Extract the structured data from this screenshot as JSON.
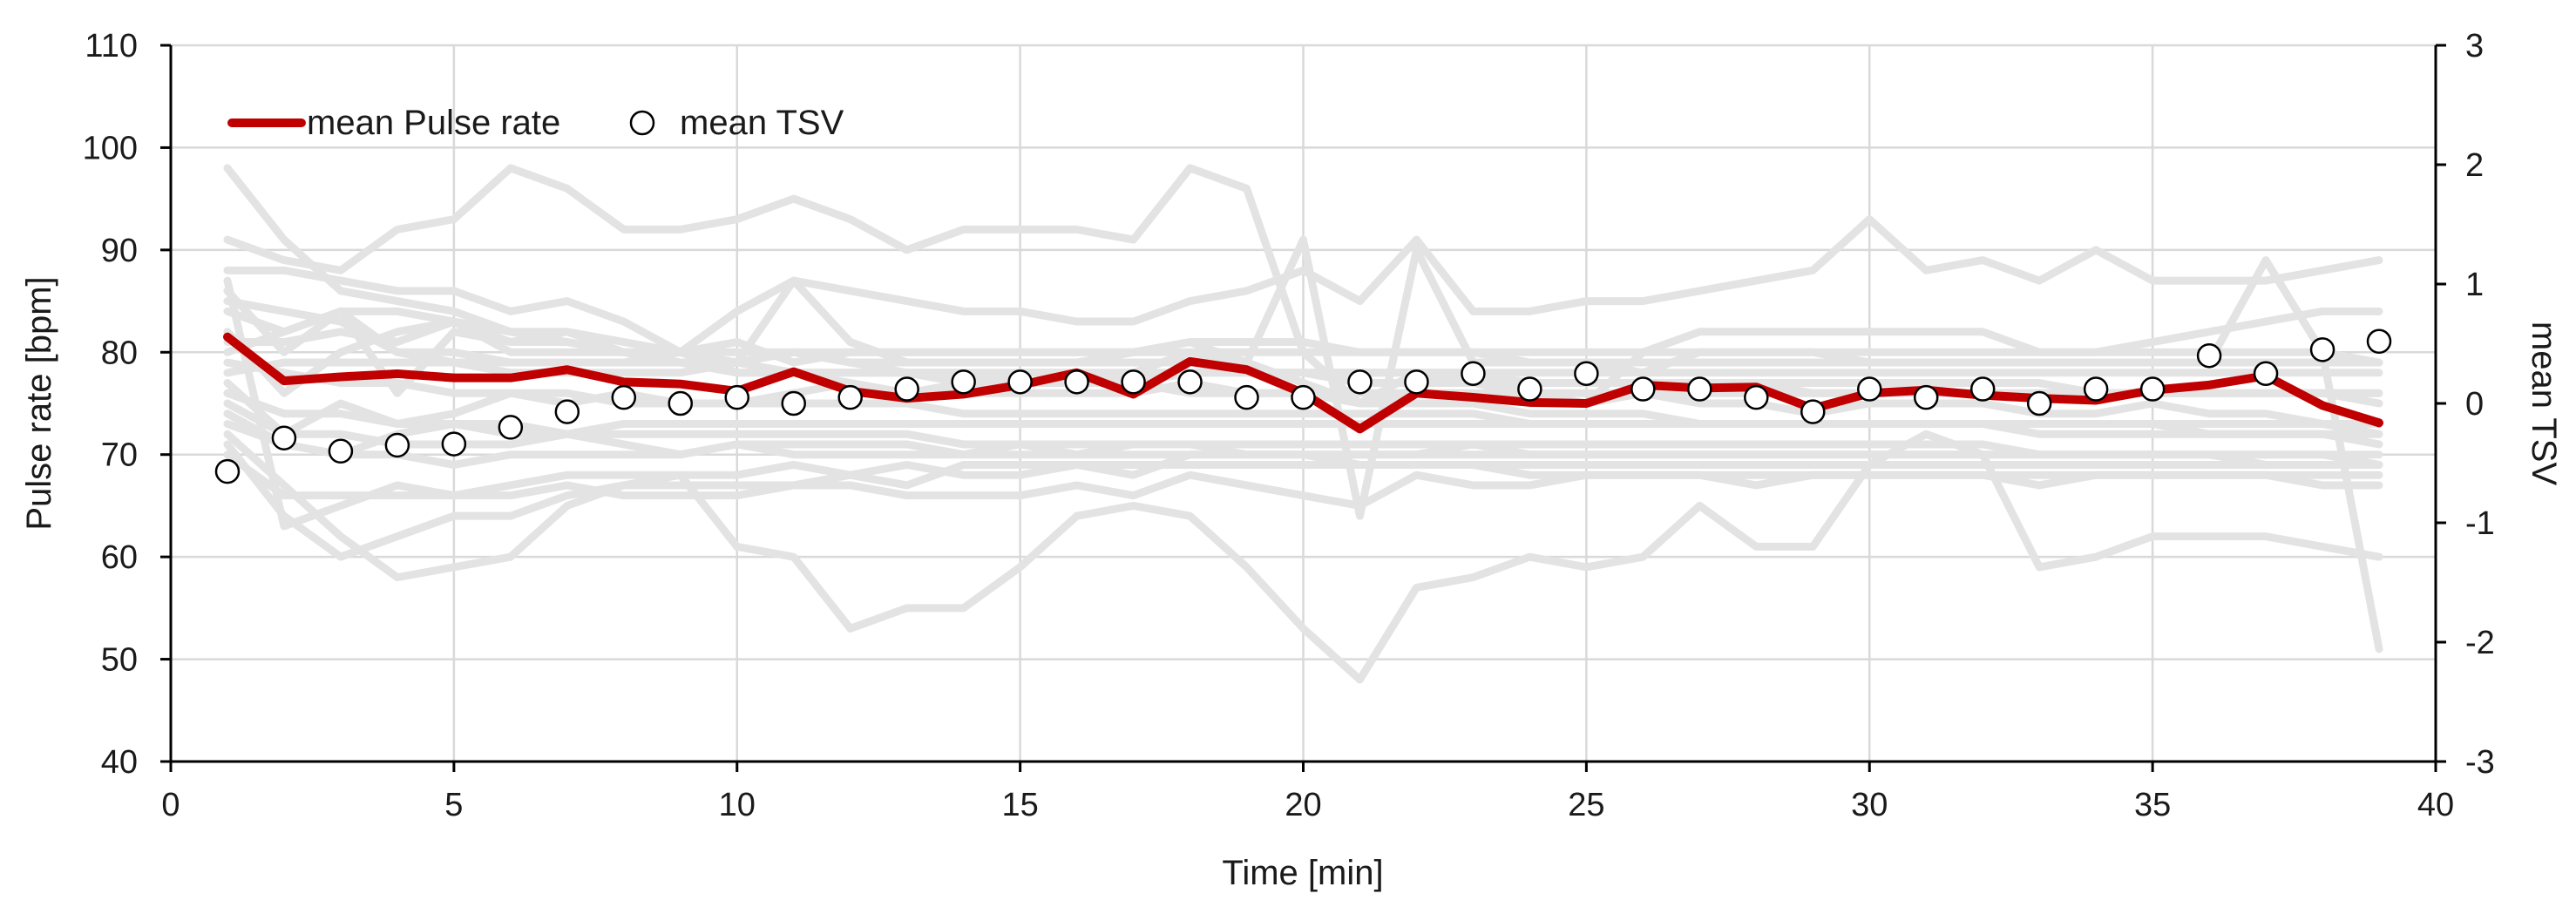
{
  "chart_data": {
    "type": "line",
    "title": "",
    "xlabel": "Time [min]",
    "ylabel": "Pulse rate [bpm]",
    "y2label": "mean TSV",
    "xlim": [
      0,
      40
    ],
    "ylim": [
      40,
      110
    ],
    "y2lim": [
      -3,
      3
    ],
    "xticks": [
      0,
      5,
      10,
      15,
      20,
      25,
      30,
      35,
      40
    ],
    "yticks": [
      40,
      50,
      60,
      70,
      80,
      90,
      100,
      110
    ],
    "y2ticks": [
      -3,
      -2,
      -1,
      0,
      1,
      2,
      3
    ],
    "grid": true,
    "legend_position": "top-left",
    "colors": {
      "mean_pulse": "#c00000",
      "individual": "#e3e3e3",
      "tsv_marker_fill": "#ffffff",
      "tsv_marker_stroke": "#000000",
      "grid": "#d9d9d9",
      "axis": "#000000"
    },
    "x": [
      1,
      2,
      3,
      4,
      5,
      6,
      7,
      8,
      9,
      10,
      11,
      12,
      13,
      14,
      15,
      16,
      17,
      18,
      19,
      20,
      21,
      22,
      23,
      24,
      25,
      26,
      27,
      28,
      29,
      30,
      31,
      32,
      33,
      34,
      35,
      36,
      37,
      38,
      39
    ],
    "series": [
      {
        "name": "mean Pulse rate",
        "axis": "left",
        "values": [
          81.5,
          77.2,
          77.6,
          77.9,
          77.5,
          77.5,
          78.3,
          77.1,
          76.9,
          76.2,
          78.1,
          76.2,
          75.5,
          75.9,
          76.8,
          78.0,
          75.9,
          79.1,
          78.3,
          76.0,
          72.5,
          76.0,
          75.6,
          75.1,
          75.0,
          76.8,
          76.5,
          76.6,
          74.5,
          76.0,
          76.3,
          75.8,
          75.5,
          75.3,
          76.3,
          76.8,
          77.7,
          74.8,
          73.1
        ]
      },
      {
        "name": "mean TSV",
        "axis": "right",
        "values": [
          -0.57,
          -0.29,
          -0.4,
          -0.35,
          -0.34,
          -0.2,
          -0.07,
          0.05,
          0.0,
          0.05,
          0.0,
          0.05,
          0.12,
          0.18,
          0.18,
          0.18,
          0.18,
          0.18,
          0.05,
          0.05,
          0.18,
          0.18,
          0.25,
          0.12,
          0.25,
          0.12,
          0.12,
          0.05,
          -0.07,
          0.12,
          0.05,
          0.12,
          0.0,
          0.12,
          0.12,
          0.4,
          0.25,
          0.45,
          0.52
        ]
      }
    ],
    "individual_series": [
      {
        "values": [
          98,
          91,
          86,
          85,
          84,
          82,
          81,
          80,
          80,
          79,
          80,
          79,
          78,
          78,
          77,
          77,
          78,
          80,
          79,
          77,
          75,
          76,
          76,
          75,
          75,
          76,
          75,
          75,
          74,
          75,
          75,
          75,
          74,
          74,
          75,
          74,
          74,
          73,
          72
        ]
      },
      {
        "values": [
          91,
          89,
          88,
          92,
          93,
          98,
          96,
          92,
          92,
          93,
          95,
          93,
          90,
          92,
          92,
          92,
          91,
          98,
          96,
          80,
          75,
          78,
          77,
          76,
          75,
          80,
          82,
          82,
          82,
          82,
          82,
          82,
          80,
          80,
          81,
          82,
          83,
          84,
          84
        ]
      },
      {
        "values": [
          88,
          88,
          87,
          86,
          86,
          84,
          85,
          83,
          80,
          84,
          87,
          86,
          85,
          84,
          84,
          83,
          83,
          85,
          86,
          88,
          85,
          91,
          84,
          84,
          85,
          85,
          86,
          87,
          88,
          93,
          88,
          89,
          87,
          90,
          87,
          87,
          87,
          88,
          89
        ]
      },
      {
        "values": [
          87,
          63,
          65,
          67,
          66,
          66,
          67,
          66,
          66,
          66,
          67,
          67,
          66,
          66,
          66,
          67,
          66,
          68,
          67,
          66,
          65,
          68,
          67,
          67,
          68,
          68,
          68,
          67,
          68,
          68,
          68,
          68,
          67,
          68,
          68,
          68,
          68,
          67,
          67
        ]
      },
      {
        "values": [
          85,
          84,
          83,
          80,
          80,
          79,
          79,
          79,
          80,
          81,
          79,
          80,
          80,
          80,
          80,
          80,
          80,
          81,
          81,
          81,
          80,
          80,
          80,
          80,
          80,
          80,
          80,
          80,
          80,
          80,
          80,
          80,
          80,
          80,
          80,
          80,
          80,
          80,
          79
        ]
      },
      {
        "values": [
          84,
          82,
          84,
          80,
          79,
          78,
          78,
          78,
          78,
          79,
          78,
          78,
          78,
          77,
          78,
          78,
          77,
          78,
          78,
          78,
          77,
          77,
          77,
          77,
          77,
          77,
          77,
          77,
          77,
          77,
          77,
          77,
          77,
          76,
          76,
          76,
          76,
          76,
          76
        ]
      },
      {
        "values": [
          82,
          76,
          80,
          82,
          83,
          82,
          82,
          80,
          80,
          78,
          78,
          77,
          76,
          76,
          76,
          76,
          76,
          77,
          76,
          76,
          75,
          75,
          75,
          74,
          74,
          74,
          73,
          73,
          73,
          73,
          73,
          73,
          73,
          73,
          73,
          72,
          72,
          72,
          71
        ]
      },
      {
        "values": [
          80,
          82,
          84,
          84,
          83,
          80,
          80,
          80,
          79,
          79,
          80,
          79,
          79,
          79,
          79,
          79,
          79,
          79,
          78,
          78,
          78,
          78,
          78,
          77,
          77,
          77,
          77,
          77,
          76,
          76,
          76,
          76,
          76,
          76,
          76,
          76,
          76,
          76,
          75
        ]
      },
      {
        "values": [
          79,
          78,
          77,
          77,
          76,
          76,
          76,
          75,
          75,
          75,
          75,
          75,
          75,
          74,
          74,
          74,
          74,
          74,
          74,
          74,
          74,
          74,
          74,
          73,
          73,
          73,
          73,
          73,
          73,
          73,
          73,
          73,
          72,
          72,
          72,
          72,
          72,
          72,
          72
        ]
      },
      {
        "values": [
          76,
          74,
          74,
          73,
          73,
          73,
          72,
          72,
          72,
          72,
          72,
          72,
          72,
          71,
          71,
          71,
          71,
          71,
          71,
          71,
          71,
          71,
          71,
          71,
          71,
          71,
          71,
          71,
          71,
          71,
          71,
          71,
          70,
          70,
          70,
          70,
          70,
          70,
          69
        ]
      },
      {
        "values": [
          75,
          72,
          72,
          71,
          71,
          71,
          72,
          71,
          70,
          71,
          71,
          71,
          71,
          70,
          71,
          70,
          71,
          71,
          70,
          70,
          70,
          70,
          71,
          70,
          70,
          70,
          70,
          70,
          70,
          70,
          70,
          70,
          70,
          70,
          70,
          70,
          69,
          69,
          69
        ]
      },
      {
        "values": [
          73,
          71,
          70,
          70,
          69,
          70,
          70,
          70,
          70,
          71,
          70,
          70,
          70,
          70,
          70,
          70,
          70,
          70,
          70,
          70,
          70,
          70,
          70,
          70,
          70,
          70,
          70,
          70,
          70,
          70,
          70,
          70,
          70,
          70,
          70,
          70,
          70,
          70,
          70
        ]
      },
      {
        "values": [
          72,
          67,
          62,
          58,
          59,
          60,
          65,
          67,
          67,
          67,
          67,
          68,
          67,
          69,
          69,
          69,
          68,
          70,
          70,
          70,
          69,
          69,
          69,
          69,
          69,
          69,
          69,
          69,
          69,
          69,
          69,
          69,
          69,
          69,
          69,
          69,
          69,
          69,
          69
        ]
      },
      {
        "values": [
          71,
          64,
          60,
          62,
          64,
          64,
          66,
          67,
          68,
          68,
          69,
          68,
          69,
          68,
          68,
          69,
          69,
          69,
          69,
          69,
          69,
          69,
          69,
          68,
          68,
          68,
          68,
          68,
          68,
          68,
          68,
          68,
          68,
          68,
          68,
          68,
          68,
          68,
          68
        ]
      },
      {
        "values": [
          70,
          66,
          66,
          66,
          66,
          67,
          68,
          68,
          68,
          61,
          60,
          53,
          55,
          55,
          59,
          64,
          65,
          64,
          59,
          53,
          48,
          57,
          58,
          60,
          59,
          60,
          65,
          61,
          61,
          69,
          72,
          70,
          59,
          60,
          62,
          62,
          62,
          61,
          60
        ]
      },
      {
        "values": [
          74,
          71,
          70,
          72,
          73,
          72,
          72,
          73,
          73,
          73,
          73,
          73,
          73,
          73,
          73,
          73,
          73,
          73,
          73,
          73,
          73,
          73,
          73,
          73,
          73,
          73,
          73,
          73,
          73,
          73,
          73,
          73,
          73,
          73,
          73,
          73,
          73,
          73,
          73
        ]
      },
      {
        "values": [
          86,
          80,
          84,
          76,
          82,
          81,
          81,
          80,
          79,
          79,
          87,
          81,
          79,
          79,
          79,
          79,
          80,
          81,
          79,
          91,
          64,
          90,
          79,
          79,
          79,
          78,
          80,
          80,
          80,
          79,
          79,
          79,
          79,
          79,
          79,
          79,
          89,
          80,
          51
        ]
      },
      {
        "values": [
          81,
          81,
          82,
          81,
          83,
          81,
          82,
          81,
          80,
          80,
          80,
          80,
          80,
          80,
          80,
          80,
          80,
          80,
          80,
          80,
          80,
          80,
          80,
          79,
          79,
          79,
          79,
          79,
          79,
          79,
          79,
          79,
          79,
          79,
          79,
          79,
          79,
          79,
          79
        ]
      },
      {
        "values": [
          78,
          79,
          79,
          79,
          79,
          79,
          79,
          79,
          79,
          78,
          78,
          78,
          78,
          78,
          78,
          78,
          78,
          78,
          78,
          78,
          78,
          78,
          78,
          78,
          78,
          78,
          78,
          78,
          78,
          78,
          78,
          78,
          78,
          78,
          78,
          78,
          78,
          78,
          78
        ]
      },
      {
        "values": [
          77,
          72,
          75,
          73,
          74,
          76,
          75,
          76,
          75,
          75,
          76,
          77,
          76,
          77,
          77,
          77,
          77,
          76,
          76,
          76,
          76,
          76,
          76,
          76,
          76,
          76,
          76,
          76,
          76,
          76,
          76,
          76,
          76,
          76,
          76,
          76,
          76,
          76,
          76
        ]
      }
    ]
  }
}
